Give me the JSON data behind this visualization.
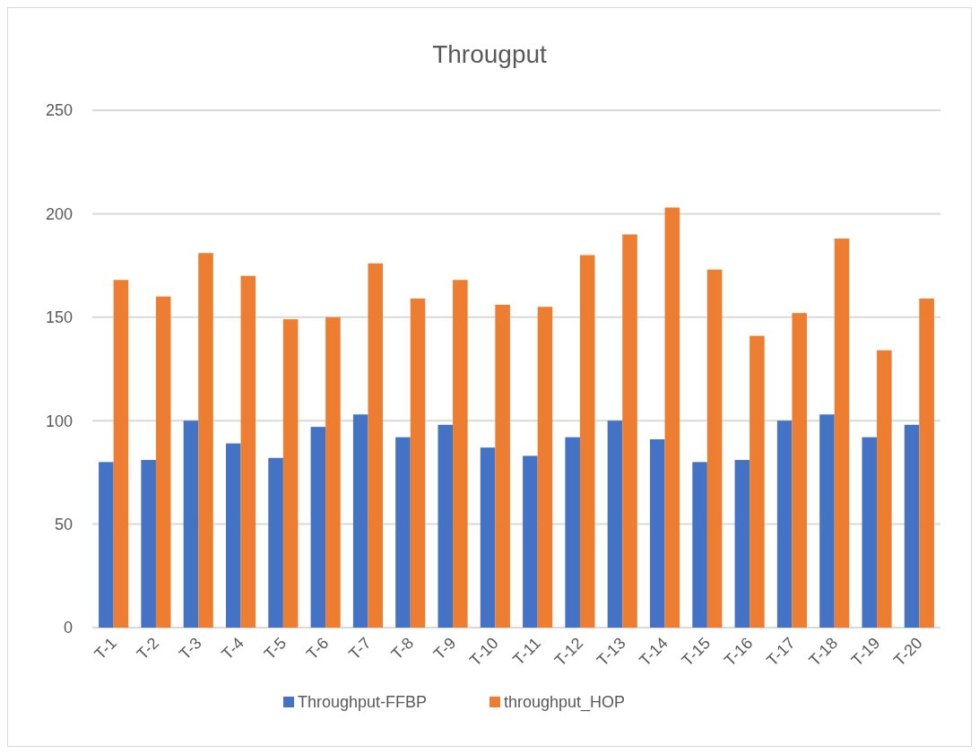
{
  "chart_data": {
    "type": "bar",
    "title": "Througput",
    "categories": [
      "T-1",
      "T-2",
      "T-3",
      "T-4",
      "T-5",
      "T-6",
      "T-7",
      "T-8",
      "T-9",
      "T-10",
      "T-11",
      "T-12",
      "T-13",
      "T-14",
      "T-15",
      "T-16",
      "T-17",
      "T-18",
      "T-19",
      "T-20"
    ],
    "series": [
      {
        "name": "Throughput-FFBP",
        "color": "#4472c4",
        "values": [
          80,
          81,
          100,
          89,
          82,
          97,
          103,
          92,
          98,
          87,
          83,
          92,
          100,
          91,
          80,
          81,
          100,
          103,
          92,
          98
        ]
      },
      {
        "name": "throughput_HOP",
        "color": "#ed7d31",
        "values": [
          168,
          160,
          181,
          170,
          149,
          150,
          176,
          159,
          168,
          156,
          155,
          180,
          190,
          203,
          173,
          141,
          152,
          188,
          134,
          159
        ]
      }
    ],
    "ylim": [
      0,
      250
    ],
    "yticks": [
      0,
      50,
      100,
      150,
      200,
      250
    ],
    "grid": "y",
    "legend": "bottom"
  }
}
